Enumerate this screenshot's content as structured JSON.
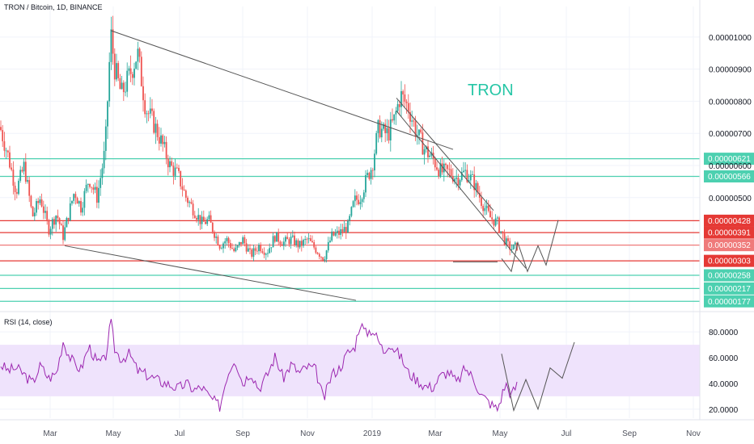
{
  "chart_data": [
    {
      "type": "candlestick",
      "title": "TRON / Bitcoin, 1D, BINANCE",
      "annotation": "TRON",
      "x_ticks": [
        "Mar",
        "May",
        "Jul",
        "Sep",
        "Nov",
        "2019",
        "Mar",
        "May",
        "Jul",
        "Sep",
        "Nov"
      ],
      "y_ticks": [
        "0.00001000",
        "0.00000900",
        "0.00000800",
        "0.00000700",
        "0.00000600",
        "0.00000500"
      ],
      "ylim": [
        1.5e-06,
        1.07e-05
      ],
      "price_series": {
        "x": [
          0,
          10,
          20,
          30,
          40,
          50,
          60,
          70,
          78,
          85,
          92,
          100,
          110,
          120,
          130,
          137,
          142,
          150,
          160,
          170,
          180,
          190,
          200,
          210,
          220,
          230,
          240,
          250,
          258,
          265,
          272,
          280,
          290,
          300,
          310,
          320,
          330,
          340,
          350,
          360,
          370,
          380,
          390,
          400,
          410,
          420,
          430,
          438,
          445,
          452,
          460,
          468,
          475,
          480,
          487,
          495,
          505,
          515,
          525,
          535,
          545,
          555,
          565,
          575,
          585,
          595,
          605,
          615,
          625,
          632,
          640
        ],
        "y": [
          7.2e-06,
          6.3e-06,
          5.2e-06,
          6e-06,
          4.4e-06,
          5e-06,
          4e-06,
          4.5e-06,
          3.8e-06,
          4.5e-06,
          5.2e-06,
          4.7e-06,
          5.6e-06,
          5e-06,
          6.5e-06,
          1.01e-05,
          9e-06,
          8.2e-06,
          8.8e-06,
          9.5e-06,
          7.8e-06,
          7.3e-06,
          6.7e-06,
          6e-06,
          5.7e-06,
          5e-06,
          4.6e-06,
          4.2e-06,
          4.3e-06,
          3.9e-06,
          3.5e-06,
          3.7e-06,
          3.3e-06,
          3.7e-06,
          3.2e-06,
          3.5e-06,
          3.3e-06,
          3.8e-06,
          3.6e-06,
          3.7e-06,
          3.5e-06,
          3.7e-06,
          3.4e-06,
          3.1e-06,
          3.8e-06,
          3.9e-06,
          4.1e-06,
          4.9e-06,
          5e-06,
          5.5e-06,
          6e-06,
          7.2e-06,
          7e-06,
          7e-06,
          7.4e-06,
          8.2e-06,
          7.8e-06,
          7e-06,
          6.5e-06,
          6.2e-06,
          5.8e-06,
          5.8e-06,
          5.6e-06,
          5.8e-06,
          5.5e-06,
          4.9e-06,
          4.4e-06,
          4.2e-06,
          3.6e-06,
          3.4e-06,
          3.5e-06
        ],
        "color": "#26a69a"
      },
      "horizontal_levels": [
        {
          "value": 6.21e-06,
          "label": "0.00000621",
          "color": "#4dd0b0"
        },
        {
          "value": 5.66e-06,
          "label": "0.00000566",
          "color": "#4dd0b0"
        },
        {
          "value": 4.28e-06,
          "label": "0.00000428",
          "color": "#e53935"
        },
        {
          "value": 3.91e-06,
          "label": "0.00000391",
          "color": "#e53935"
        },
        {
          "value": 3.52e-06,
          "label": "0.00000352",
          "color": "#ef7a7a"
        },
        {
          "value": 3.03e-06,
          "label": "0.00000303",
          "color": "#e53935"
        },
        {
          "value": 2.58e-06,
          "label": "0.00000258",
          "color": "#4dd0b0"
        },
        {
          "value": 2.17e-06,
          "label": "0.00000217",
          "color": "#4dd0b0"
        },
        {
          "value": 1.77e-06,
          "label": "0.00000177",
          "color": "#4dd0b0"
        }
      ],
      "trendlines": [
        {
          "x": [
            137,
            560
          ],
          "y": [
            1.02e-05,
            6.5e-06
          ]
        },
        {
          "x": [
            80,
            440
          ],
          "y": [
            3.5e-06,
            1.8e-06
          ]
        },
        {
          "x": [
            490,
            610
          ],
          "y": [
            8.1e-06,
            4.6e-06
          ]
        },
        {
          "x": [
            490,
            650
          ],
          "y": [
            7.7e-06,
            2.8e-06
          ]
        },
        {
          "x": [
            615,
            560
          ],
          "y": [
            3e-06,
            3e-06
          ]
        }
      ],
      "projection": {
        "x": [
          620,
          632,
          640,
          652,
          665,
          675,
          690
        ],
        "y": [
          3.1e-06,
          2.7e-06,
          3.6e-06,
          2.7e-06,
          3.5e-06,
          2.9e-06,
          4.3e-06
        ]
      }
    },
    {
      "type": "line",
      "title": "RSI (14, close)",
      "y_ticks": [
        "80.0000",
        "60.0000",
        "40.0000",
        "20.0000"
      ],
      "ylim": [
        13,
        92
      ],
      "band": [
        30,
        70
      ],
      "series": {
        "x": [
          0,
          10,
          20,
          30,
          40,
          50,
          60,
          70,
          78,
          85,
          92,
          100,
          110,
          120,
          130,
          137,
          142,
          150,
          160,
          170,
          180,
          190,
          200,
          210,
          220,
          230,
          240,
          250,
          258,
          265,
          272,
          280,
          290,
          300,
          310,
          320,
          330,
          340,
          350,
          360,
          370,
          380,
          390,
          400,
          410,
          420,
          430,
          438,
          445,
          452,
          460,
          468,
          475,
          480,
          487,
          495,
          505,
          515,
          525,
          535,
          545,
          555,
          565,
          575,
          585,
          595,
          605,
          615,
          625,
          632,
          640
        ],
        "y": [
          55,
          50,
          52,
          47,
          40,
          54,
          44,
          48,
          73,
          62,
          55,
          51,
          69,
          56,
          58,
          88,
          66,
          59,
          63,
          50,
          47,
          44,
          41,
          39,
          36,
          40,
          35,
          37,
          30,
          26,
          22,
          45,
          60,
          40,
          49,
          36,
          46,
          61,
          44,
          55,
          48,
          53,
          51,
          27,
          47,
          52,
          64,
          67,
          87,
          79,
          82,
          73,
          64,
          72,
          67,
          61,
          48,
          43,
          38,
          37,
          46,
          49,
          40,
          52,
          44,
          31,
          25,
          20,
          40,
          31,
          40
        ],
        "color": "#9c27b0"
      },
      "projection": {
        "x": [
          620,
          635,
          650,
          665,
          680,
          695,
          710
        ],
        "y": [
          63,
          19,
          43,
          20,
          52,
          44,
          72
        ]
      }
    }
  ],
  "colors": {
    "candle_up": "#26a69a",
    "candle_down": "#ef5350",
    "grid": "#f0f3fa",
    "rsi_band": "#efe3fc",
    "rsi_line": "#9c27b0",
    "trend": "#555555",
    "tron_text": "#26c6a6",
    "cyan_level": "#4dd0b0",
    "red_level": "#e53935"
  }
}
